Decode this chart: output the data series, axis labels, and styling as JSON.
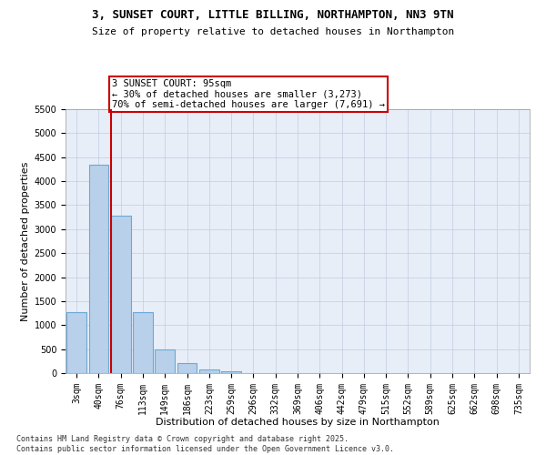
{
  "title1": "3, SUNSET COURT, LITTLE BILLING, NORTHAMPTON, NN3 9TN",
  "title2": "Size of property relative to detached houses in Northampton",
  "xlabel": "Distribution of detached houses by size in Northampton",
  "ylabel": "Number of detached properties",
  "bar_labels": [
    "3sqm",
    "40sqm",
    "76sqm",
    "113sqm",
    "149sqm",
    "186sqm",
    "223sqm",
    "259sqm",
    "296sqm",
    "332sqm",
    "369sqm",
    "406sqm",
    "442sqm",
    "479sqm",
    "515sqm",
    "552sqm",
    "589sqm",
    "625sqm",
    "662sqm",
    "698sqm",
    "735sqm"
  ],
  "bar_values": [
    1270,
    4350,
    3290,
    1270,
    490,
    215,
    75,
    40,
    0,
    0,
    0,
    0,
    0,
    0,
    0,
    0,
    0,
    0,
    0,
    0,
    0
  ],
  "ylim": [
    0,
    5500
  ],
  "yticks": [
    0,
    500,
    1000,
    1500,
    2000,
    2500,
    3000,
    3500,
    4000,
    4500,
    5000,
    5500
  ],
  "bar_color": "#b8d0ea",
  "bar_edge_color": "#6aaad4",
  "vline_color": "#cc0000",
  "vline_bar_index": 2,
  "annotation_text": "3 SUNSET COURT: 95sqm\n← 30% of detached houses are smaller (3,273)\n70% of semi-detached houses are larger (7,691) →",
  "annotation_box_color": "#ffffff",
  "annotation_box_edge": "#cc0000",
  "bg_color": "#e8eef8",
  "grid_color": "#c0cce0",
  "footer": "Contains HM Land Registry data © Crown copyright and database right 2025.\nContains public sector information licensed under the Open Government Licence v3.0.",
  "title1_fontsize": 9,
  "title2_fontsize": 8,
  "xlabel_fontsize": 8,
  "ylabel_fontsize": 8,
  "tick_fontsize": 7,
  "annotation_fontsize": 7.5,
  "footer_fontsize": 6
}
